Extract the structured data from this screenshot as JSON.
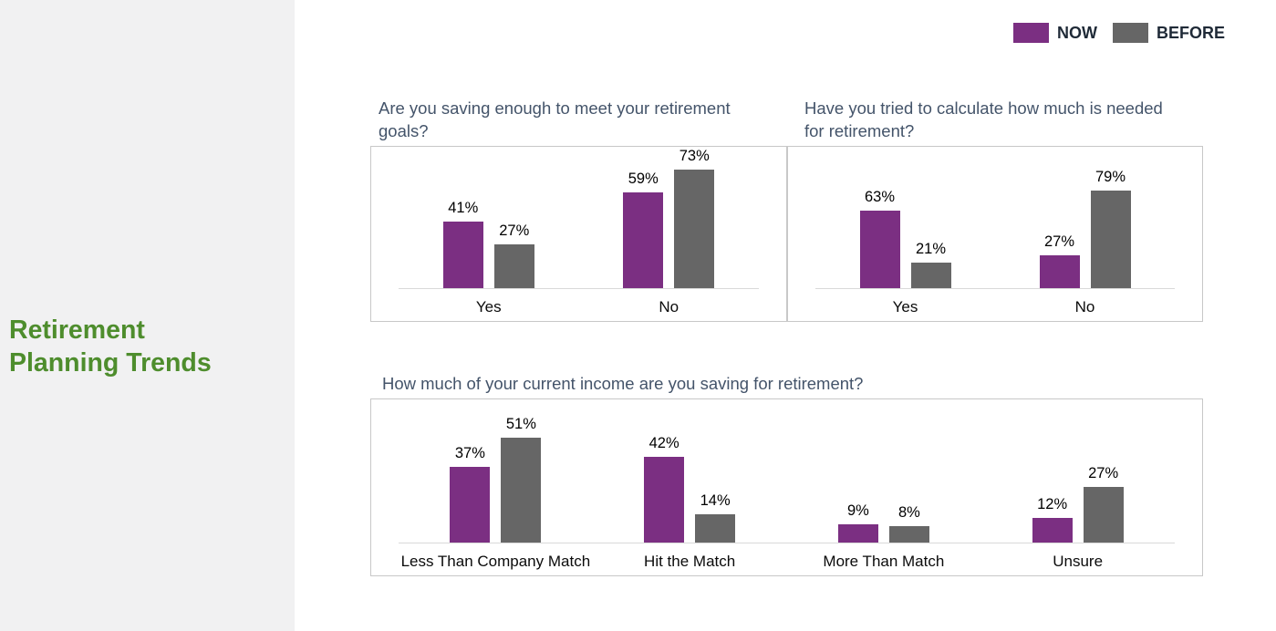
{
  "sidebar": {
    "title_line1": "Retirement",
    "title_line2": "Planning Trends"
  },
  "legend": {
    "items": [
      {
        "label": "NOW",
        "color": "#7B2F82"
      },
      {
        "label": "BEFORE",
        "color": "#666666"
      }
    ]
  },
  "colors": {
    "now_bar": "#7B2F82",
    "before_bar": "#666666",
    "sidebar_title_green": "#4E8D2D",
    "chart_title_slate": "#44546A",
    "legend_text": "#1F2A37",
    "sidebar_bg": "#F1F1F2",
    "panel_border": "#C8C8C8",
    "axis_line": "#D9D9D9"
  },
  "chart_data": [
    {
      "type": "bar",
      "title": "Are you saving enough to meet your retirement goals?",
      "categories": [
        "Yes",
        "No"
      ],
      "series": [
        {
          "name": "NOW",
          "values": [
            41,
            59
          ]
        },
        {
          "name": "BEFORE",
          "values": [
            27,
            73
          ]
        }
      ],
      "value_suffix": "%",
      "ylim": [
        0,
        80
      ],
      "grid": false,
      "legend_position": "top-right-shared"
    },
    {
      "type": "bar",
      "title": "Have you tried to calculate how much is needed for retirement?",
      "categories": [
        "Yes",
        "No"
      ],
      "series": [
        {
          "name": "NOW",
          "values": [
            63,
            27
          ]
        },
        {
          "name": "BEFORE",
          "values": [
            21,
            79
          ]
        }
      ],
      "value_suffix": "%",
      "ylim": [
        0,
        100
      ],
      "grid": false,
      "legend_position": "top-right-shared"
    },
    {
      "type": "bar",
      "title": "How much of your current income are you saving for retirement?",
      "categories": [
        "Less Than Company Match",
        "Hit the Match",
        "More Than Match",
        "Unsure"
      ],
      "series": [
        {
          "name": "NOW",
          "values": [
            37,
            42,
            9,
            12
          ]
        },
        {
          "name": "BEFORE",
          "values": [
            51,
            14,
            8,
            27
          ]
        }
      ],
      "value_suffix": "%",
      "ylim": [
        0,
        60
      ],
      "grid": false,
      "legend_position": "top-right-shared"
    }
  ]
}
